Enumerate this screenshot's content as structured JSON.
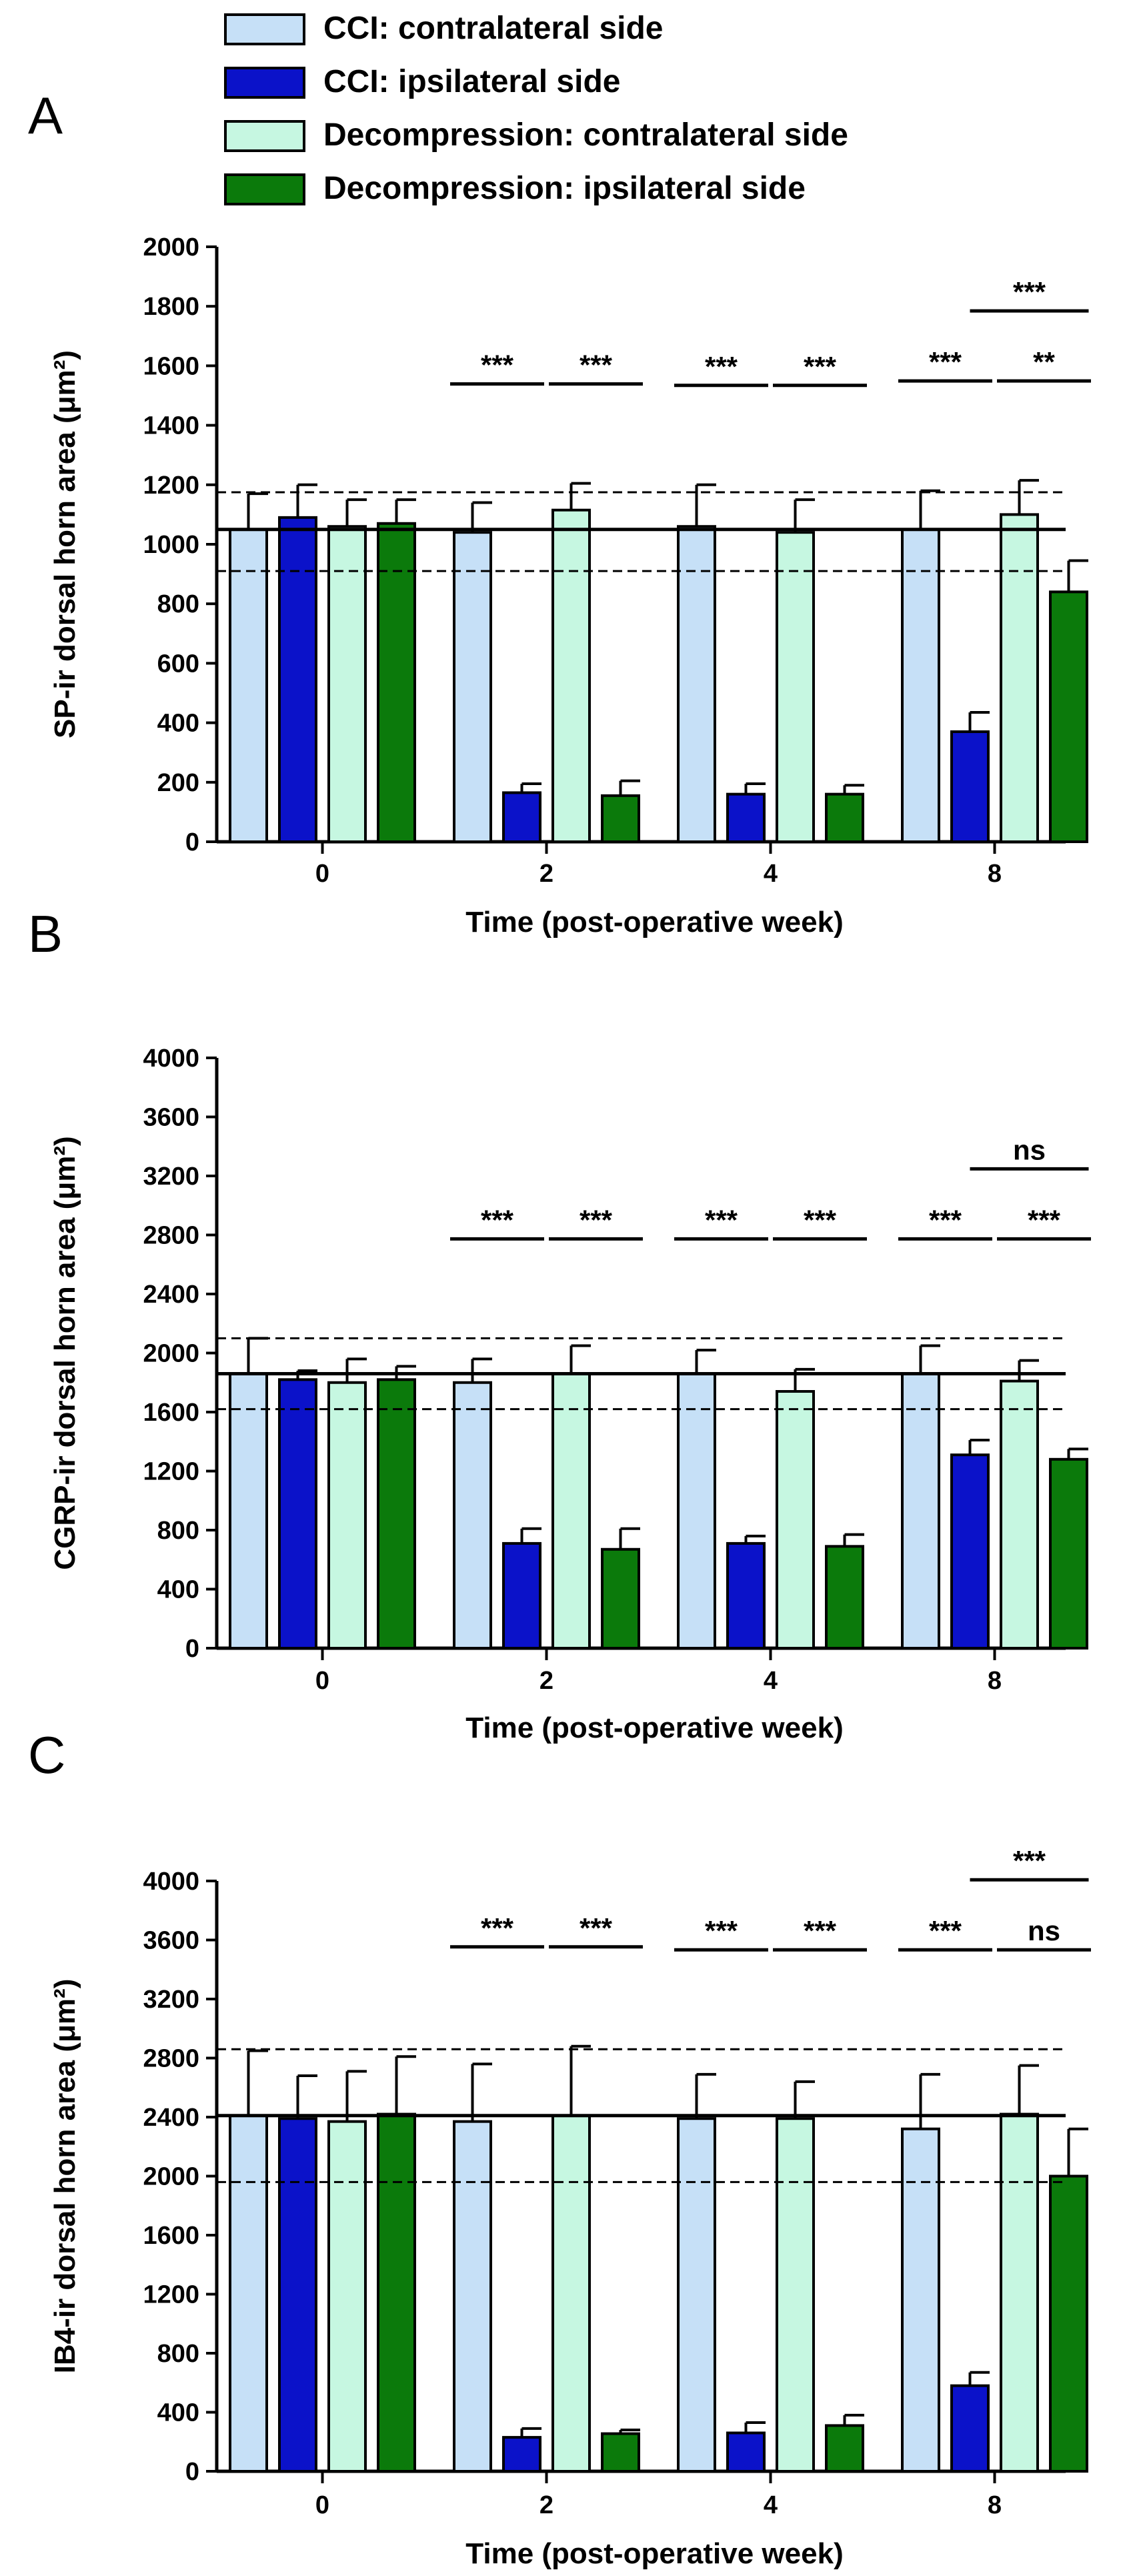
{
  "legend": [
    {
      "label": "CCI: contralateral side",
      "color": "#c6e0f7"
    },
    {
      "label": "CCI: ipsilateral side",
      "color": "#0b12c9"
    },
    {
      "label": "Decompression: contralateral side",
      "color": "#c6f7e1"
    },
    {
      "label": "Decompression: ipsilateral side",
      "color": "#0b7a0b"
    }
  ],
  "chart_data": [
    {
      "panel": "A",
      "type": "bar",
      "xlabel": "Time (post-operative week)",
      "ylabel": "SP-ir dorsal horn area (μm²)",
      "ylim": [
        0,
        2000
      ],
      "yticks": [
        "0",
        "200",
        "400",
        "600",
        "800",
        "1000",
        "1200",
        "1400",
        "1600",
        "1800",
        "2000"
      ],
      "categories": [
        "0",
        "2",
        "4",
        "8"
      ],
      "series": [
        {
          "name": "CCI: contralateral side",
          "values": [
            1050,
            1040,
            1060,
            1050
          ],
          "errors": [
            120,
            100,
            140,
            130
          ]
        },
        {
          "name": "CCI: ipsilateral side",
          "values": [
            1090,
            165,
            160,
            370
          ],
          "errors": [
            110,
            30,
            35,
            65
          ]
        },
        {
          "name": "Decompression: contralateral side",
          "values": [
            1060,
            1115,
            1040,
            1100
          ],
          "errors": [
            90,
            90,
            110,
            115
          ]
        },
        {
          "name": "Decompression: ipsilateral side",
          "values": [
            1070,
            155,
            160,
            840
          ],
          "errors": [
            80,
            50,
            30,
            105
          ]
        }
      ],
      "reference": {
        "mean": 1050,
        "upper": 1175,
        "lower": 910
      },
      "significance": [
        {
          "group": 1,
          "from_series": 0,
          "to_series": 1,
          "label": "***",
          "level": 1
        },
        {
          "group": 1,
          "from_series": 2,
          "to_series": 3,
          "label": "***",
          "level": 1
        },
        {
          "group": 2,
          "from_series": 0,
          "to_series": 1,
          "label": "***",
          "level": 1
        },
        {
          "group": 2,
          "from_series": 2,
          "to_series": 3,
          "label": "***",
          "level": 1
        },
        {
          "group": 3,
          "from_series": 0,
          "to_series": 1,
          "label": "***",
          "level": 1
        },
        {
          "group": 3,
          "from_series": 2,
          "to_series": 3,
          "label": "**",
          "level": 1
        },
        {
          "group": 3,
          "from_series": 1,
          "to_series": 3,
          "label": "***",
          "level": 2
        }
      ]
    },
    {
      "panel": "B",
      "type": "bar",
      "xlabel": "Time (post-operative week)",
      "ylabel": "CGRP-ir dorsal horn area (μm²)",
      "ylim": [
        0,
        4000
      ],
      "yticks": [
        "0",
        "400",
        "800",
        "1200",
        "1600",
        "2000",
        "2400",
        "2800",
        "3200",
        "3600",
        "4000"
      ],
      "categories": [
        "0",
        "2",
        "4",
        "8"
      ],
      "series": [
        {
          "name": "CCI: contralateral side",
          "values": [
            1860,
            1800,
            1860,
            1860
          ],
          "errors": [
            240,
            160,
            160,
            190
          ]
        },
        {
          "name": "CCI: ipsilateral side",
          "values": [
            1820,
            710,
            710,
            1310
          ],
          "errors": [
            60,
            100,
            50,
            100
          ]
        },
        {
          "name": "Decompression: contralateral side",
          "values": [
            1800,
            1860,
            1740,
            1810
          ],
          "errors": [
            160,
            190,
            150,
            140
          ]
        },
        {
          "name": "Decompression: ipsilateral side",
          "values": [
            1820,
            670,
            690,
            1280
          ],
          "errors": [
            90,
            140,
            80,
            70
          ]
        }
      ],
      "reference": {
        "mean": 1860,
        "upper": 2100,
        "lower": 1620
      },
      "significance": [
        {
          "group": 1,
          "from_series": 0,
          "to_series": 1,
          "label": "***",
          "level": 1
        },
        {
          "group": 1,
          "from_series": 2,
          "to_series": 3,
          "label": "***",
          "level": 1
        },
        {
          "group": 2,
          "from_series": 0,
          "to_series": 1,
          "label": "***",
          "level": 1
        },
        {
          "group": 2,
          "from_series": 2,
          "to_series": 3,
          "label": "***",
          "level": 1
        },
        {
          "group": 3,
          "from_series": 0,
          "to_series": 1,
          "label": "***",
          "level": 1
        },
        {
          "group": 3,
          "from_series": 2,
          "to_series": 3,
          "label": "***",
          "level": 1
        },
        {
          "group": 3,
          "from_series": 1,
          "to_series": 3,
          "label": "ns",
          "level": 2
        }
      ]
    },
    {
      "panel": "C",
      "type": "bar",
      "xlabel": "Time (post-operative week)",
      "ylabel": "IB4-ir dorsal horn area (μm²)",
      "ylim": [
        0,
        4000
      ],
      "yticks": [
        "0",
        "400",
        "800",
        "1200",
        "1600",
        "2000",
        "2400",
        "2800",
        "3200",
        "3600",
        "4000"
      ],
      "categories": [
        "0",
        "2",
        "4",
        "8"
      ],
      "series": [
        {
          "name": "CCI: contralateral side",
          "values": [
            2410,
            2370,
            2390,
            2320
          ],
          "errors": [
            440,
            390,
            300,
            370
          ]
        },
        {
          "name": "CCI: ipsilateral side",
          "values": [
            2390,
            230,
            260,
            580
          ],
          "errors": [
            290,
            60,
            70,
            90
          ]
        },
        {
          "name": "Decompression: contralateral side",
          "values": [
            2370,
            2410,
            2390,
            2420
          ],
          "errors": [
            340,
            470,
            250,
            330
          ]
        },
        {
          "name": "Decompression: ipsilateral side",
          "values": [
            2420,
            255,
            310,
            2000
          ],
          "errors": [
            390,
            25,
            70,
            320
          ]
        }
      ],
      "reference": {
        "mean": 2410,
        "upper": 2860,
        "lower": 1960
      },
      "significance": [
        {
          "group": 1,
          "from_series": 0,
          "to_series": 1,
          "label": "***",
          "level": 1
        },
        {
          "group": 1,
          "from_series": 2,
          "to_series": 3,
          "label": "***",
          "level": 1
        },
        {
          "group": 2,
          "from_series": 0,
          "to_series": 1,
          "label": "***",
          "level": 1
        },
        {
          "group": 2,
          "from_series": 2,
          "to_series": 3,
          "label": "***",
          "level": 1
        },
        {
          "group": 3,
          "from_series": 0,
          "to_series": 1,
          "label": "***",
          "level": 1
        },
        {
          "group": 3,
          "from_series": 2,
          "to_series": 3,
          "label": "ns",
          "level": 1
        },
        {
          "group": 3,
          "from_series": 1,
          "to_series": 3,
          "label": "***",
          "level": 2
        }
      ]
    }
  ]
}
